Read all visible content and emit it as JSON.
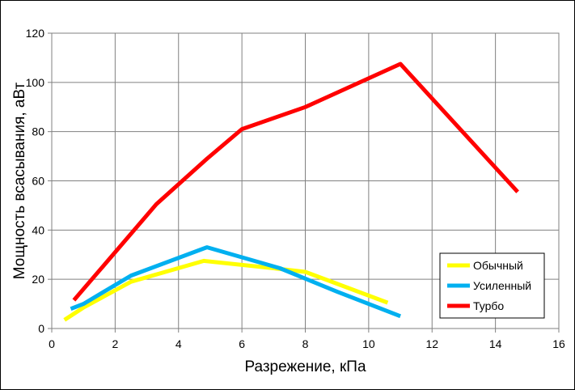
{
  "chart_data": {
    "type": "line",
    "title": "",
    "xlabel": "Разрежение, кПа",
    "ylabel": "Мощность всасывания, аВт",
    "xlim": [
      0,
      16
    ],
    "ylim": [
      0,
      120
    ],
    "x_ticks": [
      "0",
      "2",
      "4",
      "6",
      "8",
      "10",
      "12",
      "14",
      "16"
    ],
    "y_ticks": [
      "0",
      "20",
      "40",
      "60",
      "80",
      "100",
      "120"
    ],
    "grid": true,
    "legend_position": "bottom-right",
    "series": [
      {
        "name": "Обычный",
        "color": "#ffff00",
        "points": [
          [
            0.4,
            3.5
          ],
          [
            1.0,
            8.5
          ],
          [
            2.5,
            19
          ],
          [
            4.8,
            27.5
          ],
          [
            7.0,
            24.5
          ],
          [
            8.0,
            23
          ],
          [
            10.6,
            10.5
          ]
        ]
      },
      {
        "name": "Усиленный",
        "color": "#00b0f0",
        "points": [
          [
            0.6,
            8
          ],
          [
            1.0,
            10
          ],
          [
            2.5,
            21.5
          ],
          [
            4.9,
            33
          ],
          [
            7.2,
            24.5
          ],
          [
            9.0,
            15
          ],
          [
            11.0,
            5
          ]
        ]
      },
      {
        "name": "Турбо",
        "color": "#ff0000",
        "points": [
          [
            0.7,
            11.5
          ],
          [
            1.0,
            16
          ],
          [
            2.5,
            38.5
          ],
          [
            3.3,
            50.5
          ],
          [
            4.9,
            69
          ],
          [
            6.0,
            81
          ],
          [
            8.0,
            90
          ],
          [
            11.0,
            107.5
          ],
          [
            14.7,
            55.5
          ]
        ]
      }
    ]
  }
}
